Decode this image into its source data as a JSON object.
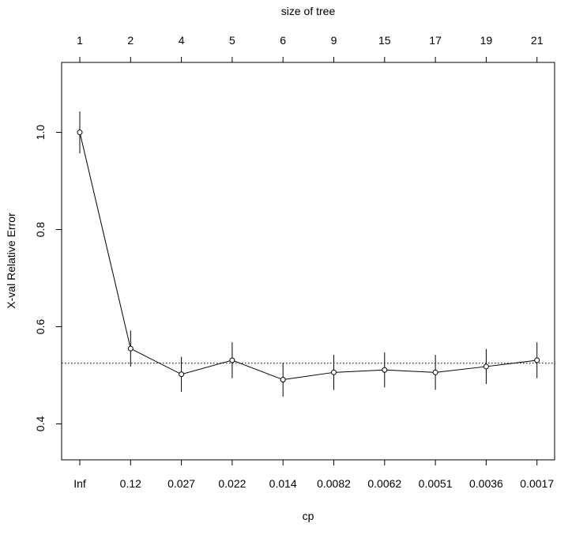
{
  "chart_data": {
    "type": "line",
    "x_axis": {
      "label": "cp",
      "tick_labels": [
        "Inf",
        "0.12",
        "0.027",
        "0.022",
        "0.014",
        "0.0082",
        "0.0062",
        "0.0051",
        "0.0036",
        "0.0017"
      ]
    },
    "top_axis": {
      "label": "size of tree",
      "tick_labels": [
        "1",
        "2",
        "4",
        "5",
        "6",
        "9",
        "15",
        "17",
        "19",
        "21"
      ]
    },
    "y_axis": {
      "label": "X-val Relative Error",
      "ticks": [
        0.4,
        0.6,
        0.8,
        1.0
      ],
      "tick_labels": [
        "0.4",
        "0.6",
        "0.8",
        "1.0"
      ],
      "ylim": [
        0.326,
        1.144
      ]
    },
    "series": [
      {
        "values": [
          1.0,
          0.555,
          0.502,
          0.531,
          0.491,
          0.506,
          0.511,
          0.506,
          0.518,
          0.531
        ],
        "error_low": [
          0.957,
          0.518,
          0.466,
          0.494,
          0.456,
          0.47,
          0.475,
          0.47,
          0.482,
          0.494
        ],
        "error_high": [
          1.043,
          0.592,
          0.538,
          0.568,
          0.526,
          0.542,
          0.547,
          0.542,
          0.554,
          0.568
        ]
      }
    ],
    "reference_line": {
      "y": 0.525,
      "style": "dotted"
    }
  }
}
